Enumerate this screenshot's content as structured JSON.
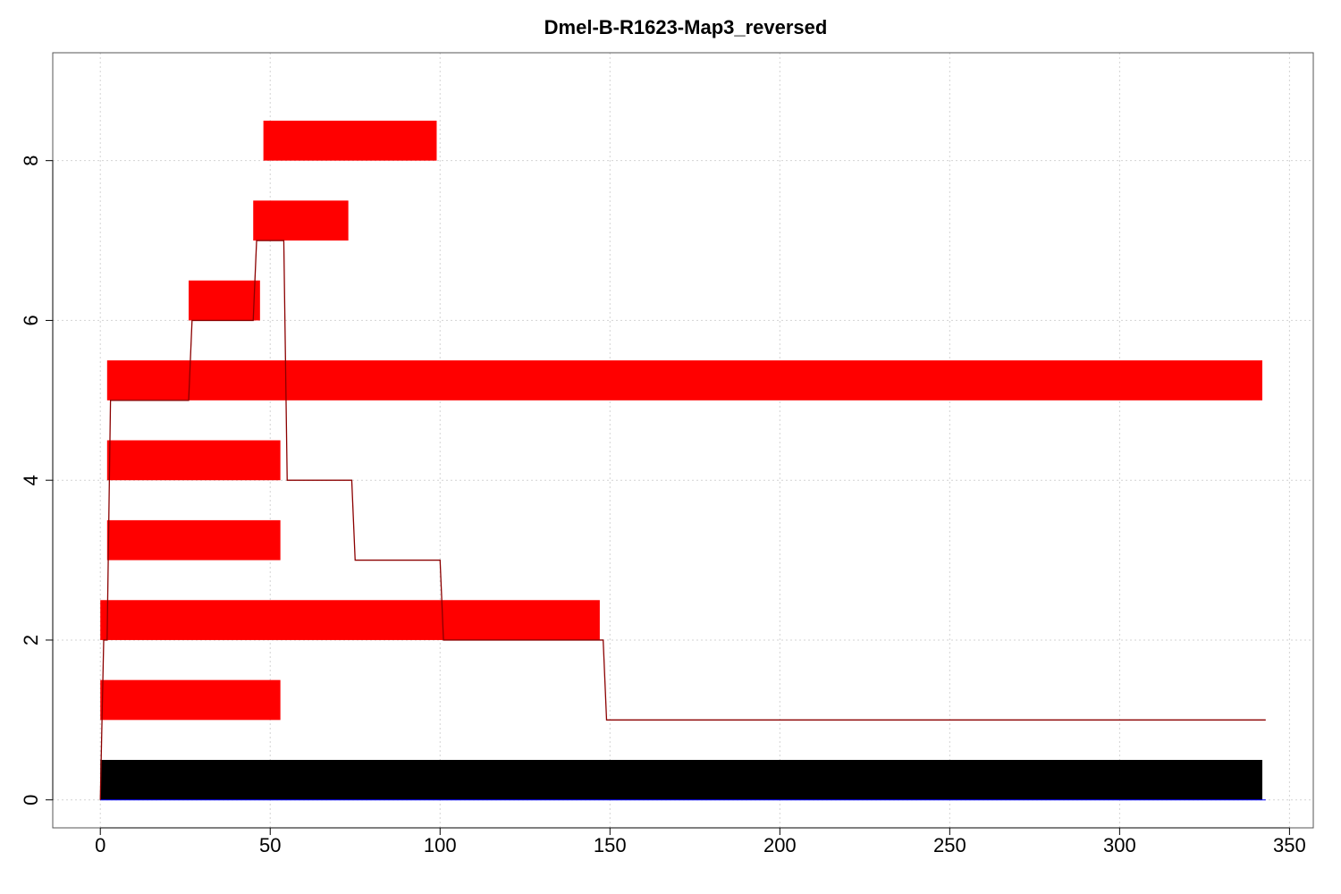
{
  "chart_data": {
    "type": "bar",
    "title": "Dmel-B-R1623-Map3_reversed",
    "xlabel": "",
    "ylabel": "",
    "xlim": [
      -14,
      357
    ],
    "ylim": [
      -0.35,
      9.35
    ],
    "x_ticks": [
      0,
      50,
      100,
      150,
      200,
      250,
      300,
      350
    ],
    "y_ticks": [
      0,
      2,
      4,
      6,
      8
    ],
    "grid": true,
    "colors": {
      "reference": "#000000",
      "segments": "#ff0000",
      "coverage_line": "#8b0000",
      "baseline": "#0000ff"
    },
    "reference_bar": {
      "start": 0,
      "end": 342,
      "y_bottom": 0,
      "y_top": 0.5
    },
    "segments": [
      {
        "start": 0,
        "end": 53,
        "y_bottom": 1,
        "y_top": 1.5
      },
      {
        "start": 0,
        "end": 147,
        "y_bottom": 2,
        "y_top": 2.5
      },
      {
        "start": 2,
        "end": 53,
        "y_bottom": 3,
        "y_top": 3.5
      },
      {
        "start": 2,
        "end": 53,
        "y_bottom": 4,
        "y_top": 4.5
      },
      {
        "start": 2,
        "end": 342,
        "y_bottom": 5,
        "y_top": 5.5
      },
      {
        "start": 26,
        "end": 47,
        "y_bottom": 6,
        "y_top": 6.5
      },
      {
        "start": 45,
        "end": 73,
        "y_bottom": 7,
        "y_top": 7.5
      },
      {
        "start": 48,
        "end": 99,
        "y_bottom": 8,
        "y_top": 8.5
      }
    ],
    "coverage": {
      "x": [
        0,
        1,
        2,
        3,
        26,
        27,
        45,
        46,
        54,
        55,
        74,
        75,
        100,
        101,
        148,
        149,
        343
      ],
      "y": [
        0,
        2,
        2,
        5,
        5,
        6,
        6,
        7,
        7,
        4,
        4,
        3,
        3,
        2,
        2,
        1,
        1
      ]
    }
  }
}
